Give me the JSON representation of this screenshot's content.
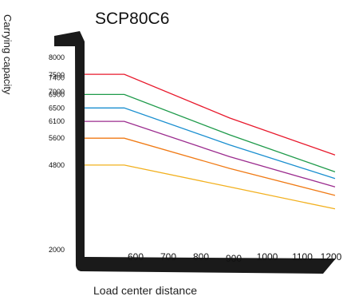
{
  "chart_data": {
    "type": "line",
    "title": "SCP80C6",
    "xlabel": "Load center distance",
    "ylabel": "Carrying capacity",
    "x": [
      600,
      700,
      800,
      900,
      1000,
      1100,
      1200
    ],
    "x_ticks": [
      "600",
      "700",
      "800",
      "900",
      "1000",
      "1100",
      "1200"
    ],
    "y_ticks": [
      "8000",
      "7500",
      "7400",
      "7000",
      "6900",
      "6500",
      "6100",
      "5600",
      "4800",
      "2000"
    ],
    "y_tick_values": [
      8000,
      7500,
      7400,
      7000,
      6900,
      6500,
      6100,
      5600,
      4800,
      2000
    ],
    "xlim": [
      480,
      1200
    ],
    "ylim": [
      2000,
      8000
    ],
    "grid": false,
    "series": [
      {
        "color": "#e8192c",
        "x": [
          480,
          600,
          900,
          1200
        ],
        "values": [
          7500,
          7500,
          6200,
          5100
        ]
      },
      {
        "color": "#1e9a4a",
        "x": [
          480,
          600,
          900,
          1200
        ],
        "values": [
          6900,
          6900,
          5700,
          4600
        ]
      },
      {
        "color": "#1a8fd0",
        "x": [
          480,
          600,
          900,
          1200
        ],
        "values": [
          6500,
          6500,
          5400,
          4400
        ]
      },
      {
        "color": "#9b2b8e",
        "x": [
          480,
          600,
          900,
          1200
        ],
        "values": [
          6100,
          6100,
          5050,
          4150
        ]
      },
      {
        "color": "#f07a14",
        "x": [
          480,
          600,
          900,
          1200
        ],
        "values": [
          5600,
          5600,
          4700,
          3900
        ]
      },
      {
        "color": "#f2b01e",
        "x": [
          480,
          600,
          900,
          1200
        ],
        "values": [
          4800,
          4800,
          4150,
          3500
        ]
      }
    ],
    "axis_color": "#1a1a1a"
  }
}
